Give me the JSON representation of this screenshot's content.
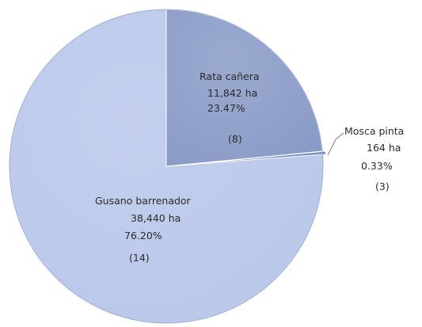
{
  "chart_data": {
    "type": "pie",
    "title": "",
    "slices": [
      {
        "label": "Rata cañera",
        "value": 11842,
        "value_text": "11,842  ha",
        "percent": 23.47,
        "percent_text": "23.47%",
        "count": 8,
        "count_text": "(8)",
        "color": "#8a9bc7"
      },
      {
        "label": "Mosca pinta",
        "value": 164,
        "value_text": "164  ha",
        "percent": 0.33,
        "percent_text": "0.33%",
        "count": 3,
        "count_text": "(3)",
        "color": "#6f84bf"
      },
      {
        "label": "Gusano barrenador",
        "value": 38440,
        "value_text": "38,440 ha",
        "percent": 76.2,
        "percent_text": "76.20%",
        "count": 14,
        "count_text": "(14)",
        "color": "#b9c7ea"
      }
    ],
    "legend": "none",
    "labels": "data labels with leader line for small slice"
  }
}
